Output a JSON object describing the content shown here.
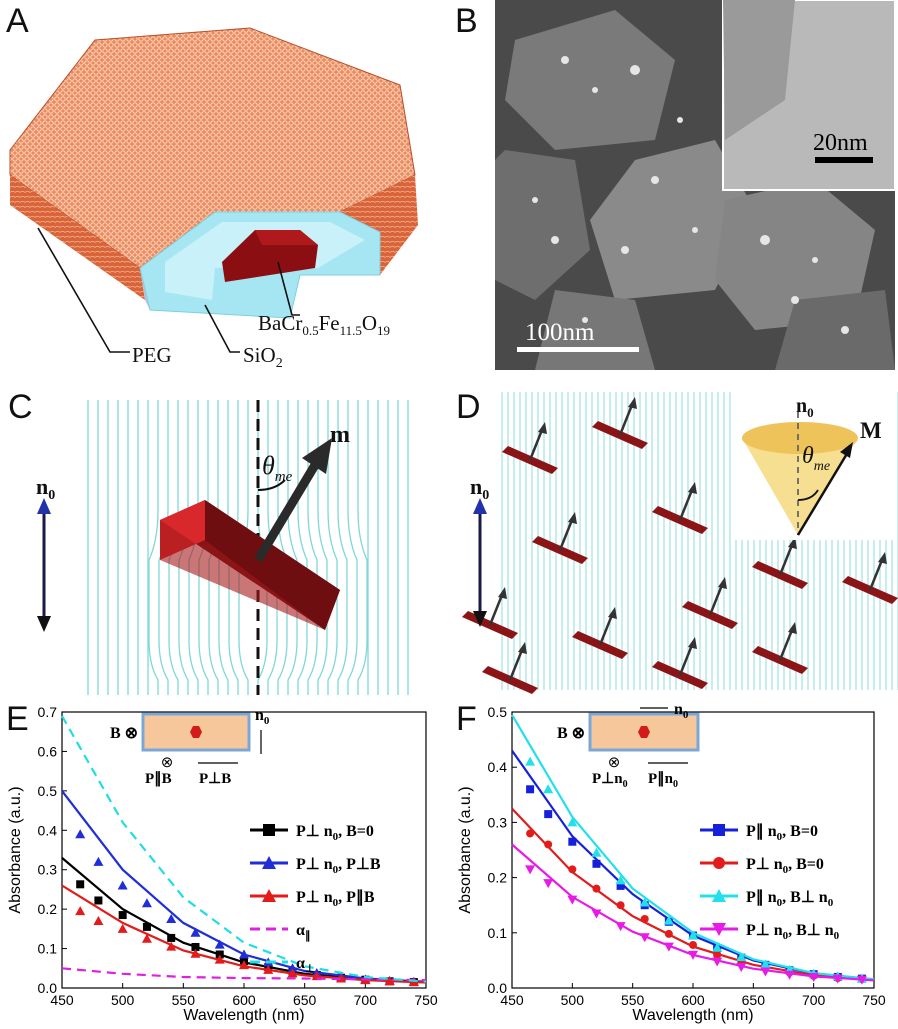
{
  "panels": {
    "A": {
      "letter": "A",
      "labels": {
        "peg": "PEG",
        "sio2_main": "SiO",
        "sio2_sub": "2",
        "core_ba": "BaCr",
        "core_s1": "0.5",
        "core_fe": "Fe",
        "core_s2": "11.5",
        "core_o": "O",
        "core_s3": "19"
      },
      "colors": {
        "peg": "#e8764c",
        "silica": "#9fe3f2",
        "core": "#8b0f12"
      }
    },
    "B": {
      "letter": "B",
      "scale_main": "100nm",
      "scale_inset": "20nm"
    },
    "C": {
      "letter": "C",
      "n0_main": "n",
      "n0_sub": "0",
      "theta": "θ",
      "theta_sub": "me",
      "m_label": "m"
    },
    "D": {
      "letter": "D",
      "n0_main": "n",
      "n0_sub": "0",
      "cone_n0_main": "n",
      "cone_n0_sub": "0",
      "theta": "θ",
      "theta_sub": "me",
      "M_label": "M"
    }
  },
  "chart_data": [
    {
      "panel": "E",
      "type": "line",
      "xlabel": "Wavelength (nm)",
      "ylabel": "Absorbance (a.u.)",
      "xlim": [
        450,
        750
      ],
      "ylim": [
        0,
        0.7
      ],
      "xticks": [
        450,
        500,
        550,
        600,
        650,
        700,
        750
      ],
      "yticks": [
        0.0,
        0.1,
        0.2,
        0.3,
        0.4,
        0.5,
        0.6,
        0.7
      ],
      "legend_position": "right",
      "inset": {
        "b_label": "B ⊗",
        "n0_main": "n",
        "n0_sub": "0",
        "p_par": "P∥B",
        "p_perp": "P⊥B"
      },
      "series": [
        {
          "name_main": "P⊥ n",
          "name_sub": "0",
          "name_tail": ", B=0",
          "color": "#000000",
          "marker": "square",
          "style": "solid",
          "x": [
            465,
            480,
            500,
            520,
            540,
            560,
            580,
            600,
            620,
            640,
            660,
            680,
            700,
            720,
            740
          ],
          "y": [
            0.263,
            0.222,
            0.185,
            0.155,
            0.127,
            0.104,
            0.085,
            0.068,
            0.053,
            0.042,
            0.033,
            0.026,
            0.021,
            0.017,
            0.015
          ],
          "fit": [
            [
              450,
              0.33
            ],
            [
              500,
              0.2
            ],
            [
              550,
              0.115
            ],
            [
              600,
              0.065
            ],
            [
              650,
              0.036
            ],
            [
              700,
              0.022
            ],
            [
              750,
              0.015
            ]
          ]
        },
        {
          "name_main": "P⊥ n",
          "name_sub": "0",
          "name_tail": ", P⊥B",
          "color": "#1f2ed6",
          "marker": "triangle",
          "style": "solid",
          "x": [
            465,
            480,
            500,
            520,
            540,
            560,
            580,
            600,
            620,
            640,
            660,
            680,
            700,
            720,
            740
          ],
          "y": [
            0.39,
            0.32,
            0.26,
            0.215,
            0.175,
            0.14,
            0.11,
            0.085,
            0.065,
            0.05,
            0.038,
            0.029,
            0.022,
            0.018,
            0.016
          ],
          "fit": [
            [
              450,
              0.5
            ],
            [
              500,
              0.3
            ],
            [
              550,
              0.165
            ],
            [
              600,
              0.085
            ],
            [
              650,
              0.043
            ],
            [
              700,
              0.024
            ],
            [
              750,
              0.016
            ]
          ]
        },
        {
          "name_main": "P⊥ n",
          "name_sub": "0",
          "name_tail": ", P∥B",
          "color": "#e21b1b",
          "marker": "triangle",
          "style": "solid",
          "x": [
            465,
            480,
            500,
            520,
            540,
            560,
            580,
            600,
            620,
            640,
            660,
            680,
            700,
            720,
            740
          ],
          "y": [
            0.195,
            0.17,
            0.15,
            0.125,
            0.105,
            0.087,
            0.072,
            0.058,
            0.046,
            0.037,
            0.03,
            0.024,
            0.02,
            0.017,
            0.015
          ],
          "fit": [
            [
              450,
              0.26
            ],
            [
              500,
              0.165
            ],
            [
              550,
              0.095
            ],
            [
              600,
              0.055
            ],
            [
              650,
              0.032
            ],
            [
              700,
              0.02
            ],
            [
              750,
              0.014
            ]
          ]
        },
        {
          "name_main": "α",
          "name_sub": "∥",
          "name_tail": "",
          "color": "#e020e0",
          "marker": "none",
          "style": "dashed",
          "fit": [
            [
              450,
              0.05
            ],
            [
              500,
              0.036
            ],
            [
              550,
              0.028
            ],
            [
              600,
              0.025
            ],
            [
              650,
              0.024
            ],
            [
              700,
              0.022
            ],
            [
              750,
              0.02
            ]
          ]
        },
        {
          "name_main": "α",
          "name_sub": "⊥",
          "name_tail": "",
          "color": "#20dce6",
          "marker": "none",
          "style": "dashed",
          "fit": [
            [
              450,
              0.69
            ],
            [
              500,
              0.42
            ],
            [
              550,
              0.23
            ],
            [
              600,
              0.115
            ],
            [
              650,
              0.055
            ],
            [
              700,
              0.028
            ],
            [
              750,
              0.016
            ]
          ]
        }
      ]
    },
    {
      "panel": "F",
      "type": "line",
      "xlabel": "Wavelength (nm)",
      "ylabel": "Absorbance (a.u.)",
      "xlim": [
        450,
        750
      ],
      "ylim": [
        0,
        0.5
      ],
      "xticks": [
        450,
        500,
        550,
        600,
        650,
        700,
        750
      ],
      "yticks": [
        0.0,
        0.1,
        0.2,
        0.3,
        0.4,
        0.5
      ],
      "legend_position": "right",
      "inset": {
        "b_label": "B ⊗",
        "n0_main": "n",
        "n0_sub": "0",
        "p_perp": "P⊥n",
        "p_perp_sub": "0",
        "p_par": "P∥n",
        "p_par_sub": "0"
      },
      "series": [
        {
          "name_main": "P∥ n",
          "name_sub": "0",
          "name_tail": ", B=0",
          "color": "#1520d8",
          "marker": "square",
          "style": "solid",
          "x": [
            465,
            480,
            500,
            520,
            540,
            560,
            580,
            600,
            620,
            640,
            660,
            680,
            700,
            720,
            740
          ],
          "y": [
            0.36,
            0.315,
            0.265,
            0.225,
            0.185,
            0.15,
            0.12,
            0.095,
            0.072,
            0.055,
            0.042,
            0.032,
            0.025,
            0.02,
            0.017
          ],
          "fit": [
            [
              450,
              0.43
            ],
            [
              500,
              0.275
            ],
            [
              550,
              0.17
            ],
            [
              600,
              0.095
            ],
            [
              650,
              0.05
            ],
            [
              700,
              0.026
            ],
            [
              750,
              0.015
            ]
          ]
        },
        {
          "name_main": "P⊥ n",
          "name_sub": "0",
          "name_tail": ", B=0",
          "color": "#e21b1b",
          "marker": "circle",
          "style": "solid",
          "x": [
            465,
            480,
            500,
            520,
            540,
            560,
            580,
            600,
            620,
            640,
            660,
            680,
            700,
            720,
            740
          ],
          "y": [
            0.28,
            0.26,
            0.215,
            0.18,
            0.15,
            0.125,
            0.098,
            0.078,
            0.06,
            0.047,
            0.036,
            0.028,
            0.022,
            0.018,
            0.016
          ],
          "fit": [
            [
              450,
              0.325
            ],
            [
              500,
              0.21
            ],
            [
              550,
              0.13
            ],
            [
              600,
              0.075
            ],
            [
              650,
              0.042
            ],
            [
              700,
              0.023
            ],
            [
              750,
              0.014
            ]
          ]
        },
        {
          "name_main": "P∥ n",
          "name_sub": "0",
          "name_tail": ", B⊥ n",
          "tail_sub": "0",
          "color": "#22e0ea",
          "marker": "triangle",
          "style": "solid",
          "x": [
            465,
            480,
            500,
            520,
            540,
            560,
            580,
            600,
            620,
            640,
            660,
            680,
            700,
            720,
            740
          ],
          "y": [
            0.41,
            0.36,
            0.3,
            0.245,
            0.195,
            0.155,
            0.122,
            0.095,
            0.073,
            0.056,
            0.043,
            0.033,
            0.026,
            0.021,
            0.017
          ],
          "fit": [
            [
              450,
              0.495
            ],
            [
              500,
              0.31
            ],
            [
              550,
              0.18
            ],
            [
              600,
              0.1
            ],
            [
              650,
              0.052
            ],
            [
              700,
              0.027
            ],
            [
              750,
              0.016
            ]
          ]
        },
        {
          "name_main": "P⊥ n",
          "name_sub": "0",
          "name_tail": ", B⊥ n",
          "tail_sub": "0",
          "color": "#e61be6",
          "marker": "triangle-down",
          "style": "solid",
          "x": [
            465,
            480,
            500,
            520,
            540,
            560,
            580,
            600,
            620,
            640,
            660,
            680,
            700,
            720,
            740
          ],
          "y": [
            0.215,
            0.19,
            0.16,
            0.135,
            0.112,
            0.092,
            0.075,
            0.06,
            0.048,
            0.038,
            0.03,
            0.024,
            0.02,
            0.017,
            0.015
          ],
          "fit": [
            [
              450,
              0.26
            ],
            [
              500,
              0.165
            ],
            [
              550,
              0.102
            ],
            [
              600,
              0.06
            ],
            [
              650,
              0.035
            ],
            [
              700,
              0.021
            ],
            [
              750,
              0.014
            ]
          ]
        }
      ]
    }
  ],
  "panel_letters": {
    "E": "E",
    "F": "F"
  }
}
